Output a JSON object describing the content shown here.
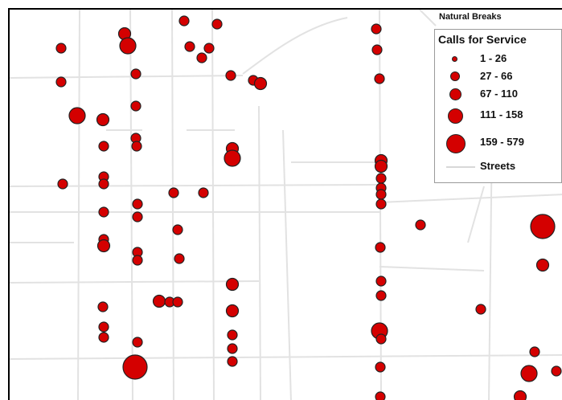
{
  "legend": {
    "heading": "Natural Breaks",
    "title": "Calls for Service",
    "classes": [
      {
        "label": "1 - 26"
      },
      {
        "label": "27 - 66"
      },
      {
        "label": "67 - 110"
      },
      {
        "label": "111 - 158"
      },
      {
        "label": "159 - 579"
      }
    ],
    "streets_label": "Streets"
  },
  "colors": {
    "point_fill": "#d40000",
    "point_outline": "#222222",
    "street": "#e2e2e2",
    "frame": "#000000"
  }
}
